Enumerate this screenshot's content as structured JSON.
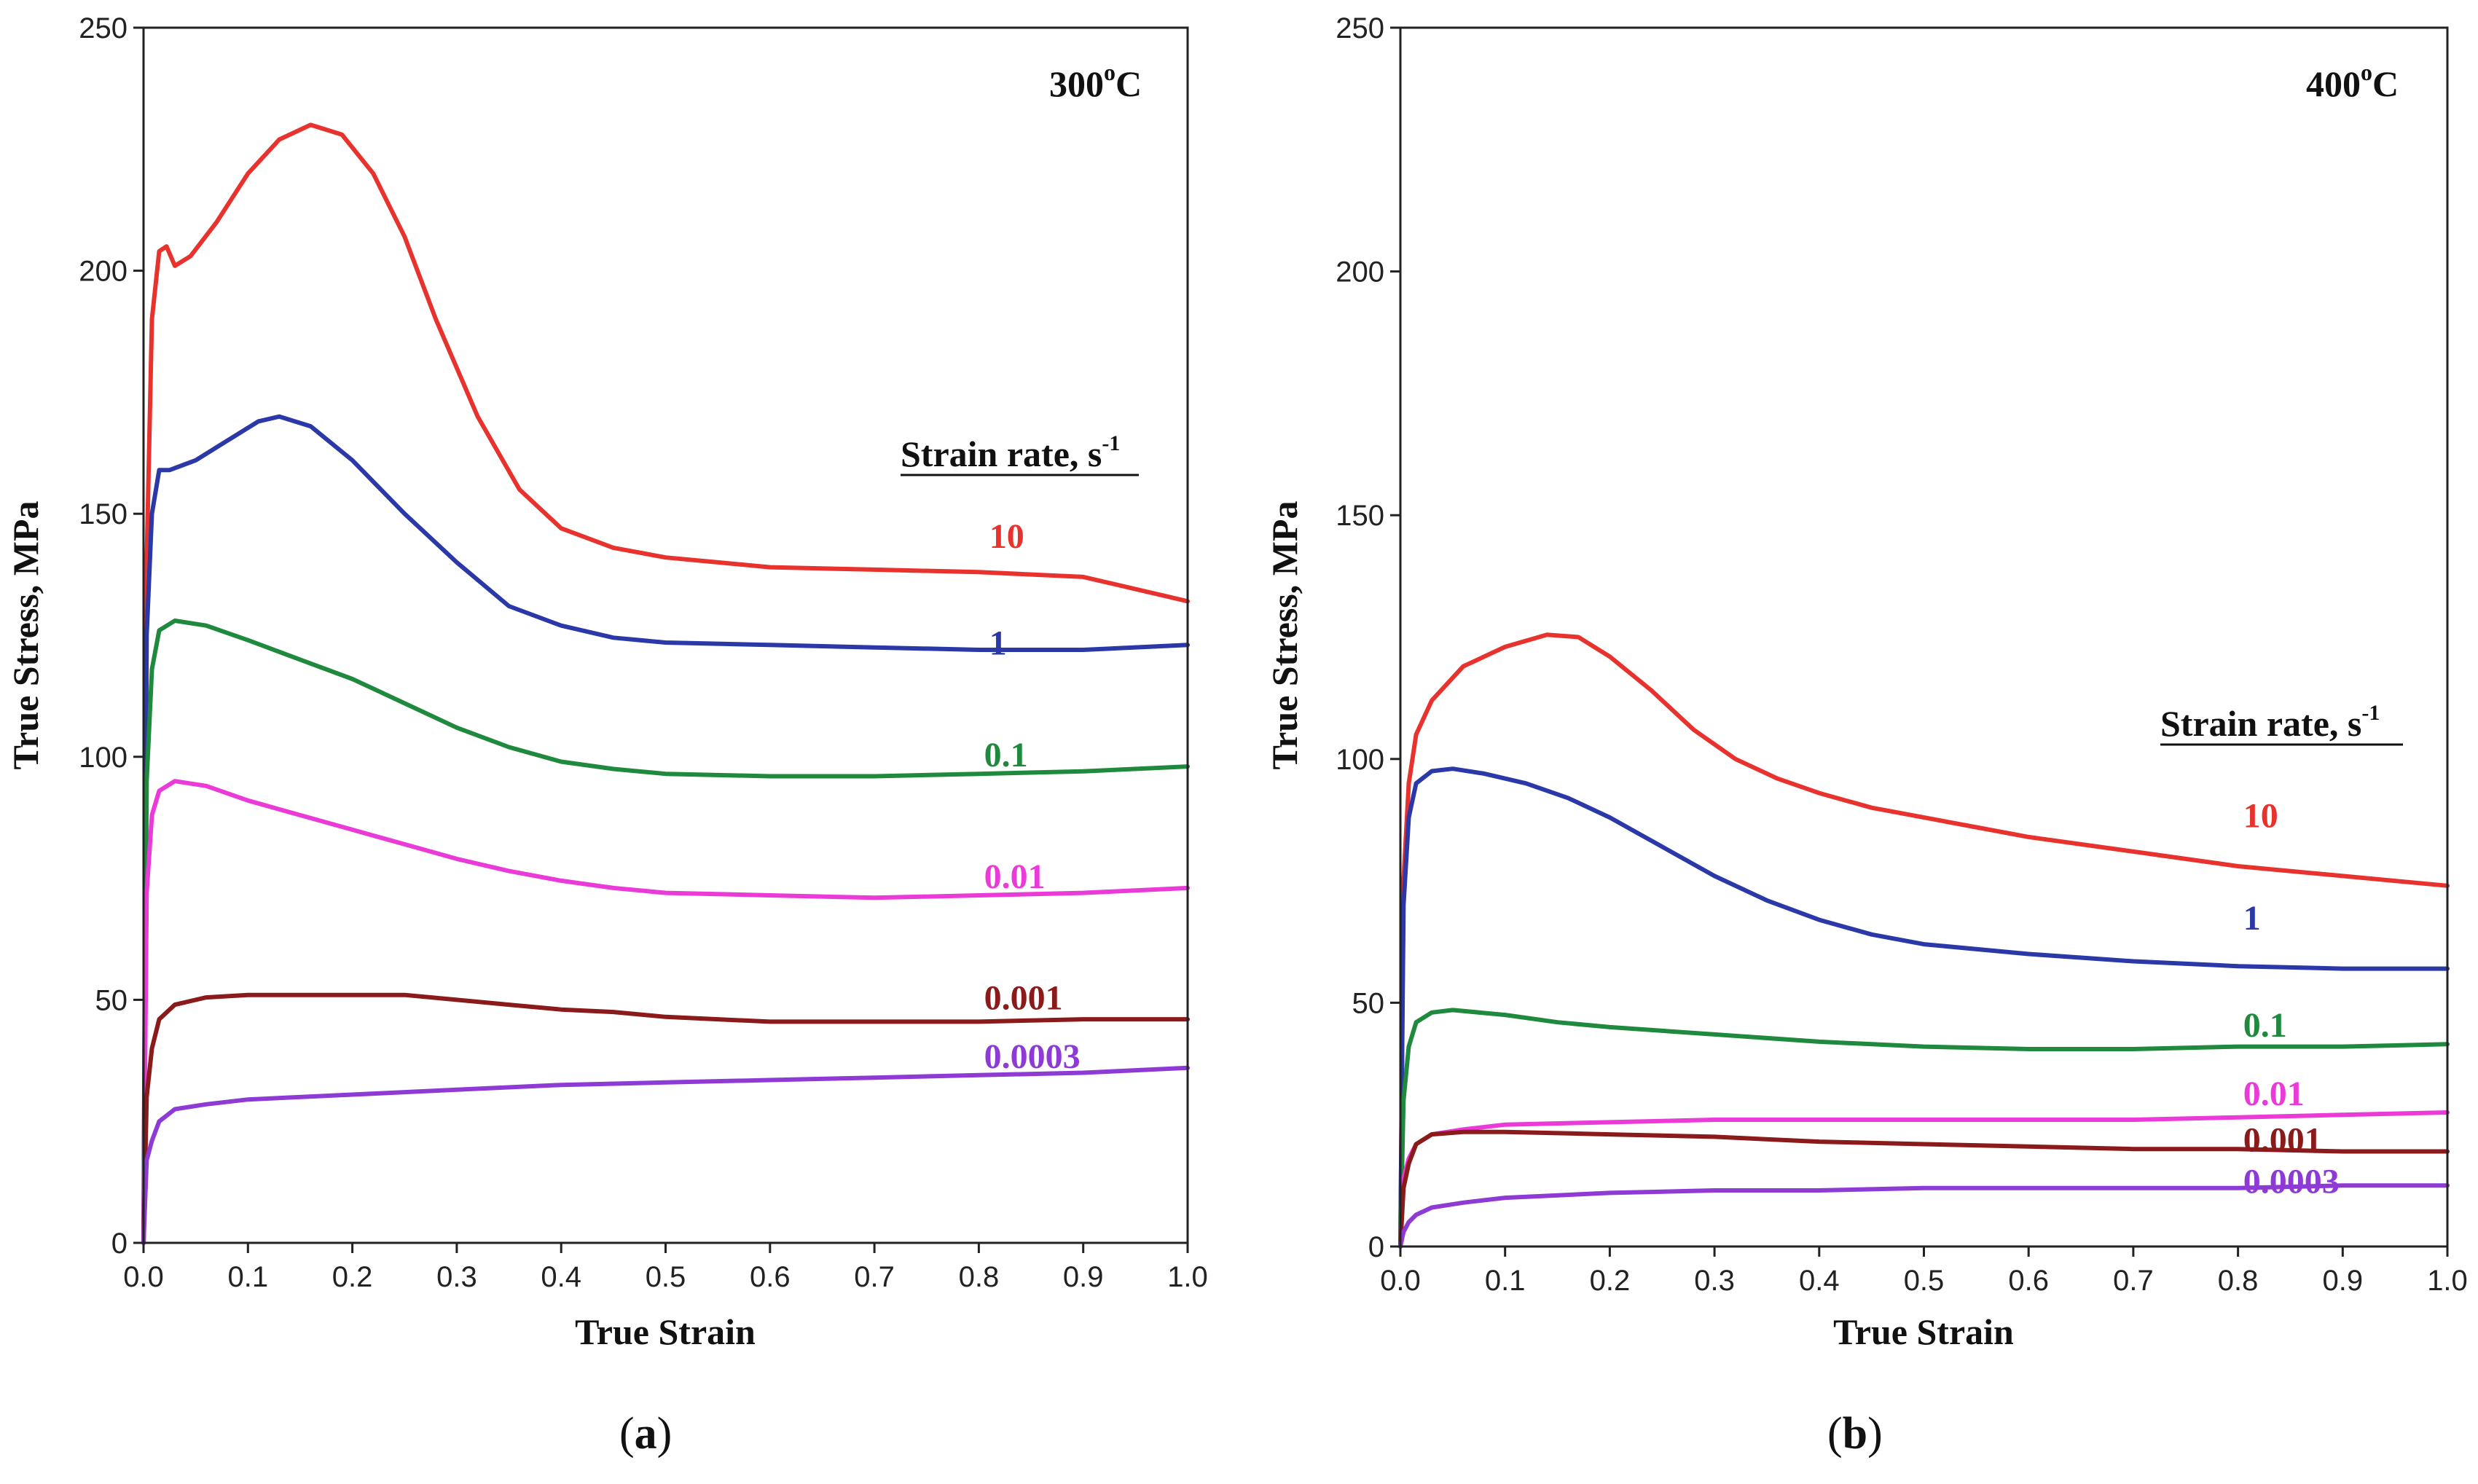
{
  "chart_data": [
    {
      "type": "line",
      "panel_label": "a",
      "title": "300",
      "title_sup": "o",
      "title_suffix": "C",
      "xlabel": "True Strain",
      "ylabel": "True Stress, MPa",
      "xlim": [
        0,
        1.0
      ],
      "ylim": [
        0,
        250
      ],
      "xticks": [
        "0.0",
        "0.1",
        "0.2",
        "0.3",
        "0.4",
        "0.5",
        "0.6",
        "0.7",
        "0.8",
        "0.9",
        "1.0"
      ],
      "yticks": [
        "0",
        "50",
        "100",
        "150",
        "200",
        "250"
      ],
      "legend_title": "Strain rate, s",
      "legend_title_sup": "-1",
      "series": [
        {
          "name": "10",
          "color": "#e8322d",
          "label_pos": [
            0.81,
            143
          ],
          "points": [
            [
              0,
              0
            ],
            [
              0.003,
              140
            ],
            [
              0.008,
              190
            ],
            [
              0.015,
              204
            ],
            [
              0.022,
              205
            ],
            [
              0.03,
              201
            ],
            [
              0.045,
              203
            ],
            [
              0.07,
              210
            ],
            [
              0.1,
              220
            ],
            [
              0.13,
              227
            ],
            [
              0.16,
              230
            ],
            [
              0.19,
              228
            ],
            [
              0.22,
              220
            ],
            [
              0.25,
              207
            ],
            [
              0.28,
              190
            ],
            [
              0.32,
              170
            ],
            [
              0.36,
              155
            ],
            [
              0.4,
              147
            ],
            [
              0.45,
              143
            ],
            [
              0.5,
              141
            ],
            [
              0.55,
              140
            ],
            [
              0.6,
              139
            ],
            [
              0.7,
              138.5
            ],
            [
              0.8,
              138
            ],
            [
              0.9,
              137
            ],
            [
              1.0,
              132
            ]
          ]
        },
        {
          "name": "1",
          "color": "#2b38a8",
          "label_pos": [
            0.81,
            121
          ],
          "points": [
            [
              0,
              0
            ],
            [
              0.003,
              125
            ],
            [
              0.008,
              150
            ],
            [
              0.015,
              159
            ],
            [
              0.025,
              159
            ],
            [
              0.05,
              161
            ],
            [
              0.08,
              165
            ],
            [
              0.11,
              169
            ],
            [
              0.13,
              170
            ],
            [
              0.16,
              168
            ],
            [
              0.2,
              161
            ],
            [
              0.25,
              150
            ],
            [
              0.3,
              140
            ],
            [
              0.35,
              131
            ],
            [
              0.4,
              127
            ],
            [
              0.45,
              124.5
            ],
            [
              0.5,
              123.5
            ],
            [
              0.6,
              123
            ],
            [
              0.7,
              122.5
            ],
            [
              0.8,
              122
            ],
            [
              0.9,
              122
            ],
            [
              1.0,
              123
            ]
          ]
        },
        {
          "name": "0.1",
          "color": "#1f8a3e",
          "label_pos": [
            0.805,
            98
          ],
          "points": [
            [
              0,
              0
            ],
            [
              0.003,
              95
            ],
            [
              0.008,
              118
            ],
            [
              0.015,
              126
            ],
            [
              0.03,
              128
            ],
            [
              0.06,
              127
            ],
            [
              0.1,
              124
            ],
            [
              0.15,
              120
            ],
            [
              0.2,
              116
            ],
            [
              0.25,
              111
            ],
            [
              0.3,
              106
            ],
            [
              0.35,
              102
            ],
            [
              0.4,
              99
            ],
            [
              0.45,
              97.5
            ],
            [
              0.5,
              96.5
            ],
            [
              0.6,
              96
            ],
            [
              0.7,
              96
            ],
            [
              0.8,
              96.5
            ],
            [
              0.9,
              97
            ],
            [
              1.0,
              98
            ]
          ]
        },
        {
          "name": "0.01",
          "color": "#ea3bd8",
          "label_pos": [
            0.805,
            73
          ],
          "points": [
            [
              0,
              0
            ],
            [
              0.003,
              72
            ],
            [
              0.008,
              88
            ],
            [
              0.015,
              93
            ],
            [
              0.03,
              95
            ],
            [
              0.06,
              94
            ],
            [
              0.1,
              91
            ],
            [
              0.15,
              88
            ],
            [
              0.2,
              85
            ],
            [
              0.25,
              82
            ],
            [
              0.3,
              79
            ],
            [
              0.35,
              76.5
            ],
            [
              0.4,
              74.5
            ],
            [
              0.45,
              73
            ],
            [
              0.5,
              72
            ],
            [
              0.6,
              71.5
            ],
            [
              0.7,
              71
            ],
            [
              0.8,
              71.5
            ],
            [
              0.9,
              72
            ],
            [
              1.0,
              73
            ]
          ]
        },
        {
          "name": "0.001",
          "color": "#8b1a1a",
          "label_pos": [
            0.805,
            48
          ],
          "points": [
            [
              0,
              0
            ],
            [
              0.003,
              30
            ],
            [
              0.008,
              40
            ],
            [
              0.015,
              46
            ],
            [
              0.03,
              49
            ],
            [
              0.06,
              50.5
            ],
            [
              0.1,
              51
            ],
            [
              0.15,
              51
            ],
            [
              0.2,
              51
            ],
            [
              0.25,
              51
            ],
            [
              0.3,
              50
            ],
            [
              0.35,
              49
            ],
            [
              0.4,
              48
            ],
            [
              0.45,
              47.5
            ],
            [
              0.5,
              46.5
            ],
            [
              0.6,
              45.5
            ],
            [
              0.7,
              45.5
            ],
            [
              0.8,
              45.5
            ],
            [
              0.9,
              46
            ],
            [
              1.0,
              46
            ]
          ]
        },
        {
          "name": "0.0003",
          "color": "#8e3bd6",
          "label_pos": [
            0.805,
            36
          ],
          "points": [
            [
              0,
              0
            ],
            [
              0.003,
              17
            ],
            [
              0.008,
              21
            ],
            [
              0.015,
              25
            ],
            [
              0.03,
              27.5
            ],
            [
              0.06,
              28.5
            ],
            [
              0.1,
              29.5
            ],
            [
              0.2,
              30.5
            ],
            [
              0.3,
              31.5
            ],
            [
              0.4,
              32.5
            ],
            [
              0.5,
              33
            ],
            [
              0.6,
              33.5
            ],
            [
              0.7,
              34
            ],
            [
              0.8,
              34.5
            ],
            [
              0.9,
              35
            ],
            [
              1.0,
              36
            ]
          ]
        }
      ]
    },
    {
      "type": "line",
      "panel_label": "b",
      "title": "400",
      "title_sup": "o",
      "title_suffix": "C",
      "xlabel": "True Strain",
      "ylabel": "True Stress, MPa",
      "xlim": [
        0,
        1.0
      ],
      "ylim": [
        0,
        250
      ],
      "xticks": [
        "0.0",
        "0.1",
        "0.2",
        "0.3",
        "0.4",
        "0.5",
        "0.6",
        "0.7",
        "0.8",
        "0.9",
        "1.0"
      ],
      "yticks": [
        "0",
        "50",
        "100",
        "150",
        "200",
        "250"
      ],
      "legend_title": "Strain rate, s",
      "legend_title_sup": "-1",
      "series": [
        {
          "name": "10",
          "color": "#e8322d",
          "label_pos": [
            0.805,
            86
          ],
          "points": [
            [
              0,
              0
            ],
            [
              0.003,
              75
            ],
            [
              0.008,
              95
            ],
            [
              0.015,
              105
            ],
            [
              0.03,
              112
            ],
            [
              0.06,
              119
            ],
            [
              0.1,
              123
            ],
            [
              0.14,
              125.5
            ],
            [
              0.17,
              125
            ],
            [
              0.2,
              121
            ],
            [
              0.24,
              114
            ],
            [
              0.28,
              106
            ],
            [
              0.32,
              100
            ],
            [
              0.36,
              96
            ],
            [
              0.4,
              93
            ],
            [
              0.45,
              90
            ],
            [
              0.5,
              88
            ],
            [
              0.55,
              86
            ],
            [
              0.6,
              84
            ],
            [
              0.7,
              81
            ],
            [
              0.8,
              78
            ],
            [
              0.9,
              76
            ],
            [
              1.0,
              74
            ]
          ]
        },
        {
          "name": "1",
          "color": "#2b38a8",
          "label_pos": [
            0.805,
            65
          ],
          "points": [
            [
              0,
              0
            ],
            [
              0.003,
              70
            ],
            [
              0.008,
              88
            ],
            [
              0.015,
              95
            ],
            [
              0.03,
              97.5
            ],
            [
              0.05,
              98
            ],
            [
              0.08,
              97
            ],
            [
              0.12,
              95
            ],
            [
              0.16,
              92
            ],
            [
              0.2,
              88
            ],
            [
              0.25,
              82
            ],
            [
              0.3,
              76
            ],
            [
              0.35,
              71
            ],
            [
              0.4,
              67
            ],
            [
              0.45,
              64
            ],
            [
              0.5,
              62
            ],
            [
              0.6,
              60
            ],
            [
              0.7,
              58.5
            ],
            [
              0.8,
              57.5
            ],
            [
              0.9,
              57
            ],
            [
              1.0,
              57
            ]
          ]
        },
        {
          "name": "0.1",
          "color": "#1f8a3e",
          "label_pos": [
            0.805,
            43
          ],
          "points": [
            [
              0,
              0
            ],
            [
              0.003,
              30
            ],
            [
              0.008,
              41
            ],
            [
              0.015,
              46
            ],
            [
              0.03,
              48
            ],
            [
              0.05,
              48.5
            ],
            [
              0.1,
              47.5
            ],
            [
              0.15,
              46
            ],
            [
              0.2,
              45
            ],
            [
              0.3,
              43.5
            ],
            [
              0.4,
              42
            ],
            [
              0.5,
              41
            ],
            [
              0.6,
              40.5
            ],
            [
              0.7,
              40.5
            ],
            [
              0.8,
              41
            ],
            [
              0.9,
              41
            ],
            [
              1.0,
              41.5
            ]
          ]
        },
        {
          "name": "0.01",
          "color": "#ea3bd8",
          "label_pos": [
            0.805,
            29
          ],
          "points": [
            [
              0,
              0
            ],
            [
              0.003,
              14
            ],
            [
              0.008,
              18
            ],
            [
              0.015,
              21
            ],
            [
              0.03,
              23
            ],
            [
              0.06,
              24
            ],
            [
              0.1,
              25
            ],
            [
              0.2,
              25.5
            ],
            [
              0.3,
              26
            ],
            [
              0.4,
              26
            ],
            [
              0.5,
              26
            ],
            [
              0.6,
              26
            ],
            [
              0.7,
              26
            ],
            [
              0.8,
              26.5
            ],
            [
              0.9,
              27
            ],
            [
              1.0,
              27.5
            ]
          ]
        },
        {
          "name": "0.001",
          "color": "#8b1a1a",
          "label_pos": [
            0.805,
            19.5
          ],
          "points": [
            [
              0,
              0
            ],
            [
              0.003,
              12
            ],
            [
              0.008,
              17
            ],
            [
              0.015,
              21
            ],
            [
              0.03,
              23
            ],
            [
              0.06,
              23.5
            ],
            [
              0.1,
              23.5
            ],
            [
              0.2,
              23
            ],
            [
              0.3,
              22.5
            ],
            [
              0.4,
              21.5
            ],
            [
              0.5,
              21
            ],
            [
              0.6,
              20.5
            ],
            [
              0.7,
              20
            ],
            [
              0.8,
              20
            ],
            [
              0.9,
              19.5
            ],
            [
              1.0,
              19.5
            ]
          ]
        },
        {
          "name": "0.0003",
          "color": "#8e3bd6",
          "label_pos": [
            0.805,
            11
          ],
          "points": [
            [
              0,
              0
            ],
            [
              0.003,
              3
            ],
            [
              0.008,
              5
            ],
            [
              0.015,
              6.5
            ],
            [
              0.03,
              8
            ],
            [
              0.06,
              9
            ],
            [
              0.1,
              10
            ],
            [
              0.2,
              11
            ],
            [
              0.3,
              11.5
            ],
            [
              0.4,
              11.5
            ],
            [
              0.5,
              12
            ],
            [
              0.6,
              12
            ],
            [
              0.7,
              12
            ],
            [
              0.8,
              12
            ],
            [
              0.9,
              12.5
            ],
            [
              1.0,
              12.5
            ]
          ]
        }
      ]
    }
  ]
}
